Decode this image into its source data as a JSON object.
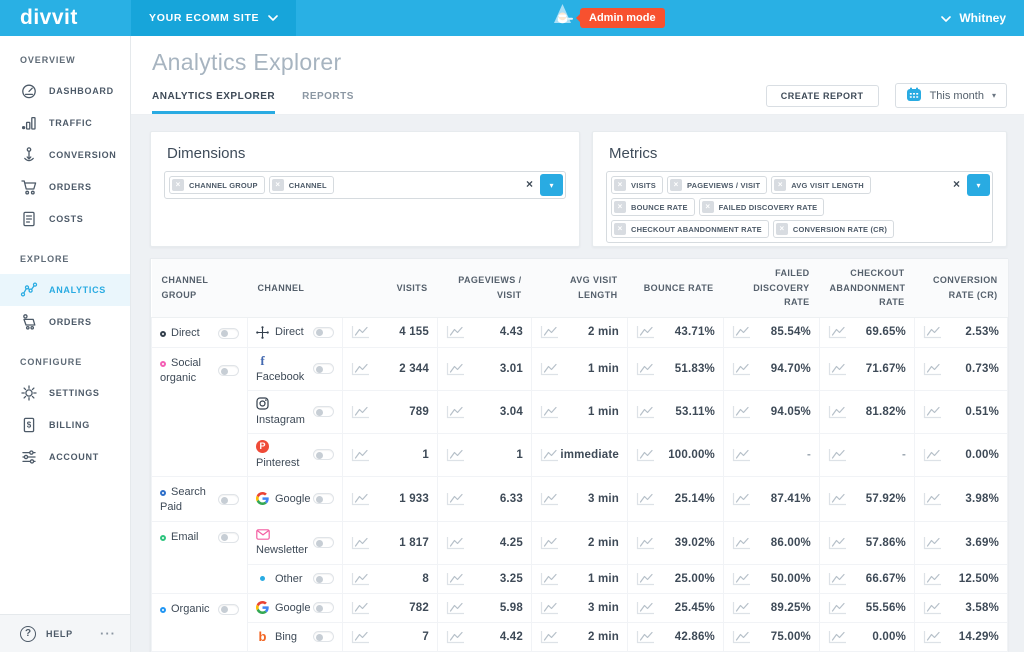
{
  "topbar": {
    "logo": "divvit",
    "site_selector": "YOUR ECOMM SITE",
    "admin_badge": "Admin mode",
    "user": "Whitney"
  },
  "sidebar": {
    "sections": [
      {
        "label": "OVERVIEW",
        "items": [
          {
            "id": "dashboard",
            "label": "DASHBOARD"
          },
          {
            "id": "traffic",
            "label": "TRAFFIC"
          },
          {
            "id": "conversion",
            "label": "CONVERSION"
          },
          {
            "id": "orders",
            "label": "ORDERS"
          },
          {
            "id": "costs",
            "label": "COSTS"
          }
        ]
      },
      {
        "label": "EXPLORE",
        "items": [
          {
            "id": "analytics",
            "label": "ANALYTICS",
            "active": true
          },
          {
            "id": "orders-explore",
            "label": "ORDERS"
          }
        ]
      },
      {
        "label": "CONFIGURE",
        "items": [
          {
            "id": "settings",
            "label": "SETTINGS"
          },
          {
            "id": "billing",
            "label": "BILLING"
          },
          {
            "id": "account",
            "label": "ACCOUNT"
          }
        ]
      }
    ],
    "help_label": "HELP",
    "more_label": "···"
  },
  "header": {
    "title": "Analytics Explorer",
    "tabs": [
      {
        "label": "ANALYTICS EXPLORER",
        "active": true
      },
      {
        "label": "REPORTS",
        "active": false
      }
    ],
    "create_report_label": "CREATE REPORT",
    "period_label": "This month"
  },
  "dimensions": {
    "title": "Dimensions",
    "tags": [
      "CHANNEL GROUP",
      "CHANNEL"
    ]
  },
  "metrics": {
    "title": "Metrics",
    "tags": [
      "VISITS",
      "PAGEVIEWS / VISIT",
      "AVG VISIT LENGTH",
      "BOUNCE RATE",
      "FAILED DISCOVERY RATE",
      "CHECKOUT ABANDONMENT RATE",
      "CONVERSION RATE (CR)"
    ]
  },
  "colors": {
    "accent": "#29abe2",
    "admin_badge": "#f7512f",
    "topbar": "#29b0e4"
  },
  "table": {
    "columns": [
      {
        "label": "CHANNEL GROUP",
        "align": "left"
      },
      {
        "label": "CHANNEL",
        "align": "left"
      },
      {
        "label": "VISITS",
        "align": "right"
      },
      {
        "label": "PAGEVIEWS / VISIT",
        "align": "right"
      },
      {
        "label": "AVG VISIT LENGTH",
        "align": "right"
      },
      {
        "label": "BOUNCE RATE",
        "align": "right"
      },
      {
        "label": "FAILED DISCOVERY RATE",
        "align": "right"
      },
      {
        "label": "CHECKOUT ABANDONMENT RATE",
        "align": "right"
      },
      {
        "label": "CONVERSION RATE (CR)",
        "align": "right"
      }
    ],
    "groups": [
      {
        "name": "Direct",
        "color": "#333f4c",
        "channels": [
          {
            "name": "Direct",
            "icon": "direct",
            "stacked": false,
            "values": [
              "4 155",
              "4.43",
              "2 min",
              "43.71%",
              "85.54%",
              "69.65%",
              "2.53%"
            ]
          }
        ]
      },
      {
        "name": "Social organic",
        "color": "#f45fb5",
        "channels": [
          {
            "name": "Facebook",
            "icon": "facebook",
            "stacked": true,
            "values": [
              "2 344",
              "3.01",
              "1 min",
              "51.83%",
              "94.70%",
              "71.67%",
              "0.73%"
            ]
          },
          {
            "name": "Instagram",
            "icon": "instagram",
            "stacked": true,
            "values": [
              "789",
              "3.04",
              "1 min",
              "53.11%",
              "94.05%",
              "81.82%",
              "0.51%"
            ]
          },
          {
            "name": "Pinterest",
            "icon": "pinterest",
            "stacked": true,
            "values": [
              "1",
              "1",
              "immediate",
              "100.00%",
              "-",
              "-",
              "0.00%"
            ]
          }
        ]
      },
      {
        "name": "Search Paid",
        "color": "#2e6fc9",
        "channels": [
          {
            "name": "Google",
            "icon": "google",
            "stacked": false,
            "values": [
              "1 933",
              "6.33",
              "3 min",
              "25.14%",
              "87.41%",
              "57.92%",
              "3.98%"
            ]
          }
        ]
      },
      {
        "name": "Email",
        "color": "#2dc47e",
        "channels": [
          {
            "name": "Newsletter",
            "icon": "newsletter",
            "stacked": true,
            "values": [
              "1 817",
              "4.25",
              "2 min",
              "39.02%",
              "86.00%",
              "57.86%",
              "3.69%"
            ]
          },
          {
            "name": "Other",
            "icon": "other",
            "stacked": false,
            "values": [
              "8",
              "3.25",
              "1 min",
              "25.00%",
              "50.00%",
              "66.67%",
              "12.50%"
            ]
          }
        ]
      },
      {
        "name": "Organic",
        "color": "#2196f3",
        "channels": [
          {
            "name": "Google",
            "icon": "google",
            "stacked": false,
            "values": [
              "782",
              "5.98",
              "3 min",
              "25.45%",
              "89.25%",
              "55.56%",
              "3.58%"
            ]
          },
          {
            "name": "Bing",
            "icon": "bing",
            "stacked": false,
            "values": [
              "7",
              "4.42",
              "2 min",
              "42.86%",
              "75.00%",
              "0.00%",
              "14.29%"
            ]
          }
        ]
      }
    ]
  }
}
